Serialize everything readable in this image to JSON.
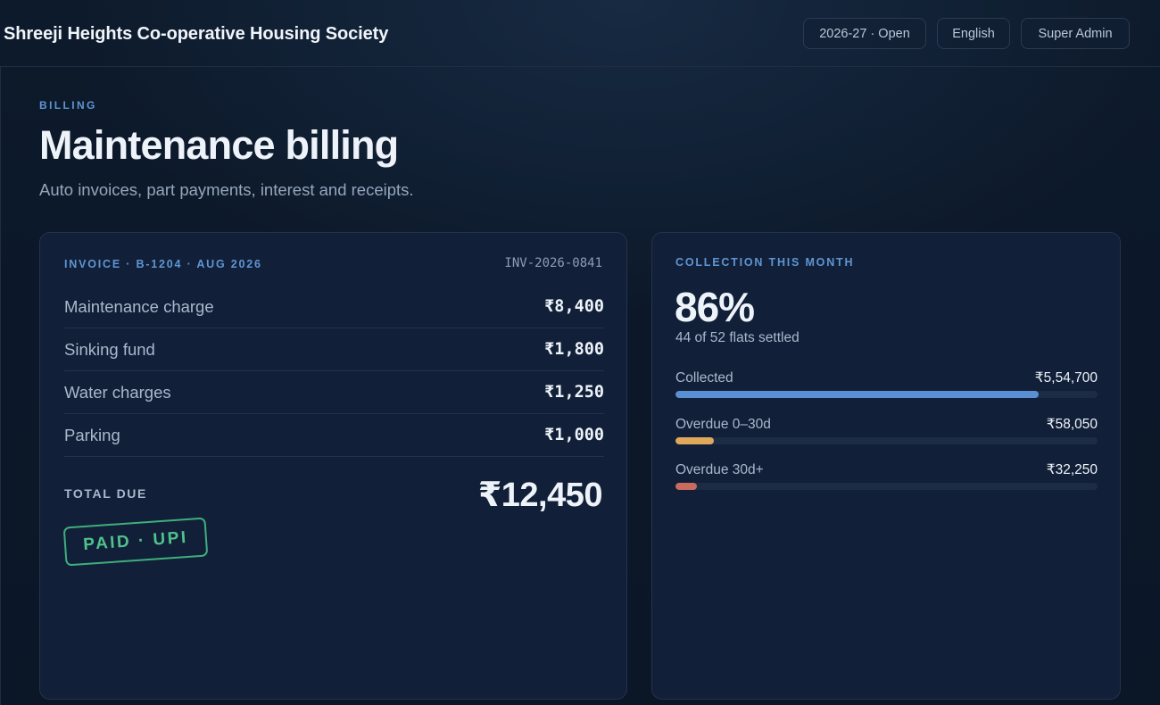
{
  "header": {
    "society_name": "Shreeji Heights Co-operative Housing Society",
    "year_button": "2026-27 · Open",
    "language_button": "English",
    "role_button": "Super Admin"
  },
  "page": {
    "eyebrow": "BILLING",
    "title": "Maintenance billing",
    "subtitle": "Auto invoices, part payments, interest and receipts."
  },
  "invoice": {
    "label": "INVOICE · B-1204 · AUG 2026",
    "number": "INV-2026-0841",
    "items": [
      {
        "label": "Maintenance charge",
        "amount": "₹8,400"
      },
      {
        "label": "Sinking fund",
        "amount": "₹1,800"
      },
      {
        "label": "Water charges",
        "amount": "₹1,250"
      },
      {
        "label": "Parking",
        "amount": "₹1,000"
      }
    ],
    "total_label": "TOTAL DUE",
    "total_amount": "₹12,450",
    "stamp": "PAID · UPI"
  },
  "collection": {
    "label": "COLLECTION THIS MONTH",
    "percent": "86%",
    "settled": "44 of 52 flats settled",
    "bars": [
      {
        "label": "Collected",
        "value": "₹5,54,700",
        "fill": 0.86,
        "color": "#5b8fd4"
      },
      {
        "label": "Overdue 0–30d",
        "value": "₹58,050",
        "fill": 0.09,
        "color": "#e0a85b"
      },
      {
        "label": "Overdue 30d+",
        "value": "₹32,250",
        "fill": 0.05,
        "color": "#c96b5f"
      }
    ]
  }
}
